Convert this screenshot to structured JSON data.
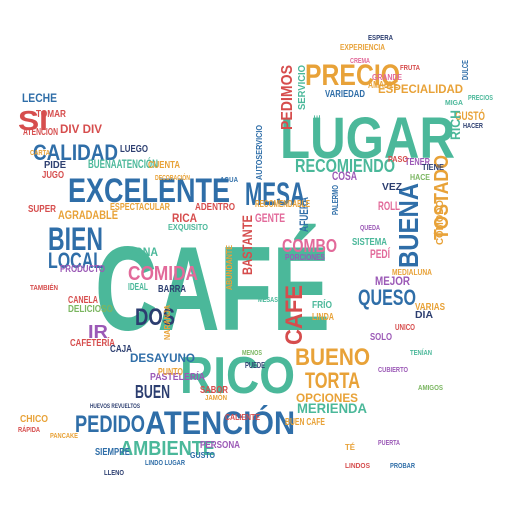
{
  "colors": {
    "teal": "#4bb89a",
    "blue": "#2f6ea8",
    "orange": "#e8a238",
    "red": "#d64d4d",
    "purple": "#9b59b6",
    "pink": "#e26a9a",
    "green": "#7bb661",
    "navy": "#2c3e70"
  },
  "words": [
    {
      "text": "CAFÉ",
      "color": "teal"
    },
    {
      "text": "LUGAR",
      "color": "teal"
    },
    {
      "text": "RICO",
      "color": "teal"
    },
    {
      "text": "EXCELENTE",
      "color": "blue"
    },
    {
      "text": "ATENCIÓN",
      "color": "blue"
    },
    {
      "text": "PRECIO",
      "color": "orange"
    },
    {
      "text": "BIEN",
      "color": "blue"
    },
    {
      "text": "MESA",
      "color": "blue"
    },
    {
      "text": "BUENA",
      "color": "blue"
    },
    {
      "text": "CALIDAD",
      "color": "blue"
    },
    {
      "text": "PEDIDO",
      "color": "blue"
    },
    {
      "text": "AMBIENTE",
      "color": "teal"
    },
    {
      "text": "RECOMIENDO",
      "color": "teal"
    },
    {
      "text": "TOSTADO",
      "color": "orange"
    },
    {
      "text": "LOCAL",
      "color": "blue"
    },
    {
      "text": "COMIDA",
      "color": "pink"
    },
    {
      "text": "BUENO",
      "color": "orange"
    },
    {
      "text": "TORTA",
      "color": "orange"
    },
    {
      "text": "QUESO",
      "color": "blue"
    },
    {
      "text": "COMBO",
      "color": "pink"
    },
    {
      "text": "SI",
      "color": "red"
    },
    {
      "text": "DOS",
      "color": "navy"
    },
    {
      "text": "BUEN",
      "color": "navy"
    },
    {
      "text": "CAFE",
      "color": "red"
    },
    {
      "text": "MERIENDA",
      "color": "teal"
    },
    {
      "text": "DESAYUNO",
      "color": "blue"
    },
    {
      "text": "BASTANTE",
      "color": "red"
    },
    {
      "text": "OPCIONES",
      "color": "orange"
    },
    {
      "text": "AGRADABLE",
      "color": "orange"
    },
    {
      "text": "PEDIMOS",
      "color": "red"
    },
    {
      "text": "LECHE",
      "color": "blue"
    },
    {
      "text": "IR",
      "color": "purple"
    },
    {
      "text": "DIV DIV",
      "color": "red"
    },
    {
      "text": "MEJOR",
      "color": "purple"
    },
    {
      "text": "ESPECIALIDAD",
      "color": "orange"
    },
    {
      "text": "ATENCION",
      "color": "red"
    },
    {
      "text": "BUENAATENCIÓN",
      "color": "teal"
    },
    {
      "text": "ESPECTACULAR",
      "color": "orange"
    },
    {
      "text": "RICA",
      "color": "red"
    },
    {
      "text": "ZONA",
      "color": "teal"
    },
    {
      "text": "BARRA",
      "color": "navy"
    },
    {
      "text": "SUPER",
      "color": "red"
    },
    {
      "text": "PRODUCTO",
      "color": "purple"
    },
    {
      "text": "DELICIOSO",
      "color": "green"
    },
    {
      "text": "CAFETERÍA",
      "color": "red"
    },
    {
      "text": "CAJA",
      "color": "navy"
    },
    {
      "text": "PASTELERÍA",
      "color": "purple"
    },
    {
      "text": "CHICO",
      "color": "orange"
    },
    {
      "text": "GENTE",
      "color": "pink"
    },
    {
      "text": "COSA",
      "color": "purple"
    },
    {
      "text": "AFUERA",
      "color": "blue"
    },
    {
      "text": "SISTEMA",
      "color": "teal"
    },
    {
      "text": "VARIEDAD",
      "color": "blue"
    },
    {
      "text": "AMABLE",
      "color": "orange"
    },
    {
      "text": "GUSTÓ",
      "color": "orange"
    },
    {
      "text": "RICH",
      "color": "teal"
    },
    {
      "text": "SERVICIO",
      "color": "teal"
    },
    {
      "text": "RECOMENDABLE",
      "color": "orange"
    },
    {
      "text": "ADENTRO",
      "color": "red"
    },
    {
      "text": "CÓMODO",
      "color": "orange"
    },
    {
      "text": "SOLO",
      "color": "purple"
    },
    {
      "text": "PEDÍ",
      "color": "pink"
    },
    {
      "text": "DÍA",
      "color": "navy"
    },
    {
      "text": "VEZ",
      "color": "navy"
    },
    {
      "text": "ROLL",
      "color": "pink"
    },
    {
      "text": "LINDA",
      "color": "orange"
    },
    {
      "text": "FRÍO",
      "color": "teal"
    },
    {
      "text": "CUENTA",
      "color": "orange"
    },
    {
      "text": "LUEGO",
      "color": "navy"
    },
    {
      "text": "SABOR",
      "color": "red"
    },
    {
      "text": "PUNTO",
      "color": "orange"
    },
    {
      "text": "IDEAL",
      "color": "teal"
    },
    {
      "text": "CANELA",
      "color": "red"
    },
    {
      "text": "VARIAS",
      "color": "orange"
    },
    {
      "text": "PIDE",
      "color": "navy"
    },
    {
      "text": "JUGO",
      "color": "red"
    },
    {
      "text": "TOMAR",
      "color": "red"
    },
    {
      "text": "PERSONA",
      "color": "purple"
    },
    {
      "text": "GUSTO",
      "color": "blue"
    },
    {
      "text": "SIEMPRE",
      "color": "blue"
    },
    {
      "text": "EXQUISITO",
      "color": "teal"
    },
    {
      "text": "PORCIONES",
      "color": "purple"
    },
    {
      "text": "MEDIALUNA",
      "color": "orange"
    },
    {
      "text": "GRANDE",
      "color": "pink"
    },
    {
      "text": "ABUNDANTE",
      "color": "orange"
    },
    {
      "text": "PALERMO",
      "color": "blue"
    },
    {
      "text": "ACORDE",
      "color": "teal"
    },
    {
      "text": "AUTOSERVICIO",
      "color": "blue"
    },
    {
      "text": "TENER",
      "color": "purple"
    },
    {
      "text": "PASO",
      "color": "red"
    },
    {
      "text": "HACE",
      "color": "green"
    },
    {
      "text": "TIENE",
      "color": "navy"
    },
    {
      "text": "EXPERIENCIA",
      "color": "orange"
    },
    {
      "text": "DULCE",
      "color": "blue"
    },
    {
      "text": "RÁPIDA",
      "color": "red"
    },
    {
      "text": "PANCAKE",
      "color": "orange"
    },
    {
      "text": "CUBIERTO",
      "color": "purple"
    },
    {
      "text": "UNICO",
      "color": "red"
    },
    {
      "text": "NARANJA",
      "color": "orange"
    },
    {
      "text": "PUEDE",
      "color": "navy"
    },
    {
      "text": "CALIENTE",
      "color": "red"
    },
    {
      "text": "HACER",
      "color": "navy"
    },
    {
      "text": "BUEN CAFE",
      "color": "orange"
    },
    {
      "text": "LINDO LUGAR",
      "color": "blue"
    },
    {
      "text": "PRECIOS",
      "color": "teal"
    },
    {
      "text": "MENOS",
      "color": "green"
    },
    {
      "text": "DECORACIÓN",
      "color": "orange"
    },
    {
      "text": "LLENO",
      "color": "navy"
    },
    {
      "text": "CREMA",
      "color": "pink"
    },
    {
      "text": "FRUTA",
      "color": "red"
    },
    {
      "text": "MIGA",
      "color": "teal"
    },
    {
      "text": "PUERTA",
      "color": "purple"
    },
    {
      "text": "TÉ",
      "color": "orange"
    },
    {
      "text": "TENÍAN",
      "color": "teal"
    },
    {
      "text": "PROBAR",
      "color": "blue"
    },
    {
      "text": "LINDOS",
      "color": "red"
    },
    {
      "text": "AMIGOS",
      "color": "green"
    },
    {
      "text": "JAMÓN",
      "color": "orange"
    },
    {
      "text": "QUEDA",
      "color": "purple"
    },
    {
      "text": "HUEVOS REVUELTOS",
      "color": "navy"
    },
    {
      "text": "AGUA",
      "color": "blue"
    },
    {
      "text": "CARTA",
      "color": "orange"
    },
    {
      "text": "MESAS",
      "color": "teal"
    },
    {
      "text": "TAMBIÉN",
      "color": "red"
    },
    {
      "text": "ESPERA",
      "color": "navy"
    }
  ]
}
